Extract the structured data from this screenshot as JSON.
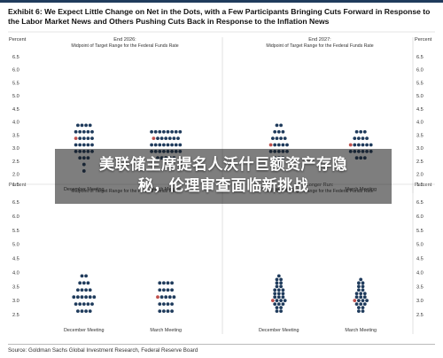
{
  "title": {
    "prefix": "Exhibit 6:",
    "text": "We Expect Little Change on Net in the Dots, with a Few Participants Bringing Cuts Forward in Response to the Labor Market News and Others Pushing Cuts Back in Response to the Inflation News"
  },
  "overlay": {
    "line1": "美联储主席提名人沃什巨额资产存隐",
    "line2": "秘，伦理审查面临新挑战"
  },
  "source": "Source: Goldman Sachs Global Investment Research, Federal Reserve Board",
  "colors": {
    "dot": "#1f3b5c",
    "highlight": "#c0504d",
    "grid": "#cccccc"
  },
  "chart_data": [
    {
      "type": "scatter",
      "title": "End 2026:",
      "subtitle": "Midpoint of Target Range for the Federal Funds Rate",
      "ylabel": "Percent",
      "ylim": [
        1.75,
        6.5
      ],
      "yticks": [
        "6.5",
        "6.0",
        "5.5",
        "5.0",
        "4.5",
        "4.0",
        "3.5",
        "3.0",
        "2.5",
        "2.0",
        "1.5"
      ],
      "categories": [
        "December Meeting",
        "March Meeting"
      ],
      "series": [
        {
          "category": "December Meeting",
          "counts": [
            {
              "y": 3.875,
              "n": 4
            },
            {
              "y": 3.625,
              "n": 5
            },
            {
              "y": 3.375,
              "n": 5
            },
            {
              "y": 3.125,
              "n": 5
            },
            {
              "y": 2.875,
              "n": 5
            },
            {
              "y": 2.625,
              "n": 3
            },
            {
              "y": 2.375,
              "n": 1
            },
            {
              "y": 2.125,
              "n": 1
            }
          ],
          "highlight": {
            "y": 3.375
          }
        },
        {
          "category": "March Meeting",
          "counts": [
            {
              "y": 3.625,
              "n": 8
            },
            {
              "y": 3.375,
              "n": 7
            },
            {
              "y": 3.125,
              "n": 8
            },
            {
              "y": 2.875,
              "n": 8
            },
            {
              "y": 2.625,
              "n": 5
            }
          ],
          "highlight": {
            "y": 3.375
          }
        }
      ]
    },
    {
      "type": "scatter",
      "title": "End 2027:",
      "subtitle": "Midpoint of Target Range for the Federal Funds Rate",
      "ylabel": "Percent",
      "ylim": [
        1.75,
        6.5
      ],
      "yticks": [
        "6.5",
        "6.0",
        "5.5",
        "5.0",
        "4.5",
        "4.0",
        "3.5",
        "3.0",
        "2.5",
        "2.0",
        "1.5"
      ],
      "categories": [
        "December Meeting",
        "March Meeting"
      ],
      "series": [
        {
          "category": "December Meeting",
          "counts": [
            {
              "y": 3.875,
              "n": 2
            },
            {
              "y": 3.625,
              "n": 3
            },
            {
              "y": 3.375,
              "n": 4
            },
            {
              "y": 3.125,
              "n": 5
            },
            {
              "y": 2.875,
              "n": 5
            },
            {
              "y": 2.625,
              "n": 3
            },
            {
              "y": 2.375,
              "n": 1
            }
          ],
          "highlight": {
            "y": 3.125
          }
        },
        {
          "category": "March Meeting",
          "counts": [
            {
              "y": 3.625,
              "n": 3
            },
            {
              "y": 3.375,
              "n": 4
            },
            {
              "y": 3.125,
              "n": 6
            },
            {
              "y": 2.875,
              "n": 6
            },
            {
              "y": 2.625,
              "n": 3
            }
          ],
          "highlight": {
            "y": 3.125
          }
        }
      ]
    },
    {
      "type": "scatter",
      "title": "",
      "subtitle": "Midpoint of Target Range for the Federal Funds Rate",
      "ylabel": "Percent",
      "ylim": [
        2.25,
        6.5
      ],
      "yticks": [
        "6.5",
        "6.0",
        "5.5",
        "5.0",
        "4.5",
        "4.0",
        "3.5",
        "3.0",
        "2.5"
      ],
      "categories": [
        "December Meeting",
        "March Meeting"
      ],
      "series": [
        {
          "category": "December Meeting",
          "counts": [
            {
              "y": 3.875,
              "n": 2
            },
            {
              "y": 3.625,
              "n": 3
            },
            {
              "y": 3.375,
              "n": 4
            },
            {
              "y": 3.125,
              "n": 6
            },
            {
              "y": 2.875,
              "n": 5
            },
            {
              "y": 2.625,
              "n": 4
            }
          ],
          "highlight": null
        },
        {
          "category": "March Meeting",
          "counts": [
            {
              "y": 3.625,
              "n": 4
            },
            {
              "y": 3.375,
              "n": 4
            },
            {
              "y": 3.125,
              "n": 5
            },
            {
              "y": 2.875,
              "n": 4
            },
            {
              "y": 2.625,
              "n": 4
            }
          ],
          "highlight": {
            "y": 3.125
          }
        }
      ]
    },
    {
      "type": "scatter",
      "title": "Longer Run:",
      "subtitle": "Midpoint of Target Range for the Federal Funds Rate",
      "ylabel": "Percent",
      "ylim": [
        2.25,
        6.5
      ],
      "yticks": [
        "6.5",
        "6.0",
        "5.5",
        "5.0",
        "4.5",
        "4.0",
        "3.5",
        "3.0",
        "2.5"
      ],
      "categories": [
        "December Meeting",
        "March Meeting"
      ],
      "series": [
        {
          "category": "December Meeting",
          "counts": [
            {
              "y": 3.875,
              "n": 1
            },
            {
              "y": 3.75,
              "n": 2
            },
            {
              "y": 3.625,
              "n": 2
            },
            {
              "y": 3.5,
              "n": 2
            },
            {
              "y": 3.375,
              "n": 3
            },
            {
              "y": 3.25,
              "n": 3
            },
            {
              "y": 3.125,
              "n": 3
            },
            {
              "y": 3.0,
              "n": 4
            },
            {
              "y": 2.875,
              "n": 3
            },
            {
              "y": 2.75,
              "n": 2
            },
            {
              "y": 2.625,
              "n": 2
            }
          ],
          "highlight": {
            "y": 3.0
          }
        },
        {
          "category": "March Meeting",
          "counts": [
            {
              "y": 3.75,
              "n": 1
            },
            {
              "y": 3.625,
              "n": 2
            },
            {
              "y": 3.5,
              "n": 2
            },
            {
              "y": 3.375,
              "n": 2
            },
            {
              "y": 3.25,
              "n": 3
            },
            {
              "y": 3.125,
              "n": 3
            },
            {
              "y": 3.0,
              "n": 4
            },
            {
              "y": 2.875,
              "n": 3
            },
            {
              "y": 2.75,
              "n": 2
            },
            {
              "y": 2.625,
              "n": 2
            }
          ],
          "highlight": {
            "y": 3.0
          }
        }
      ]
    }
  ]
}
